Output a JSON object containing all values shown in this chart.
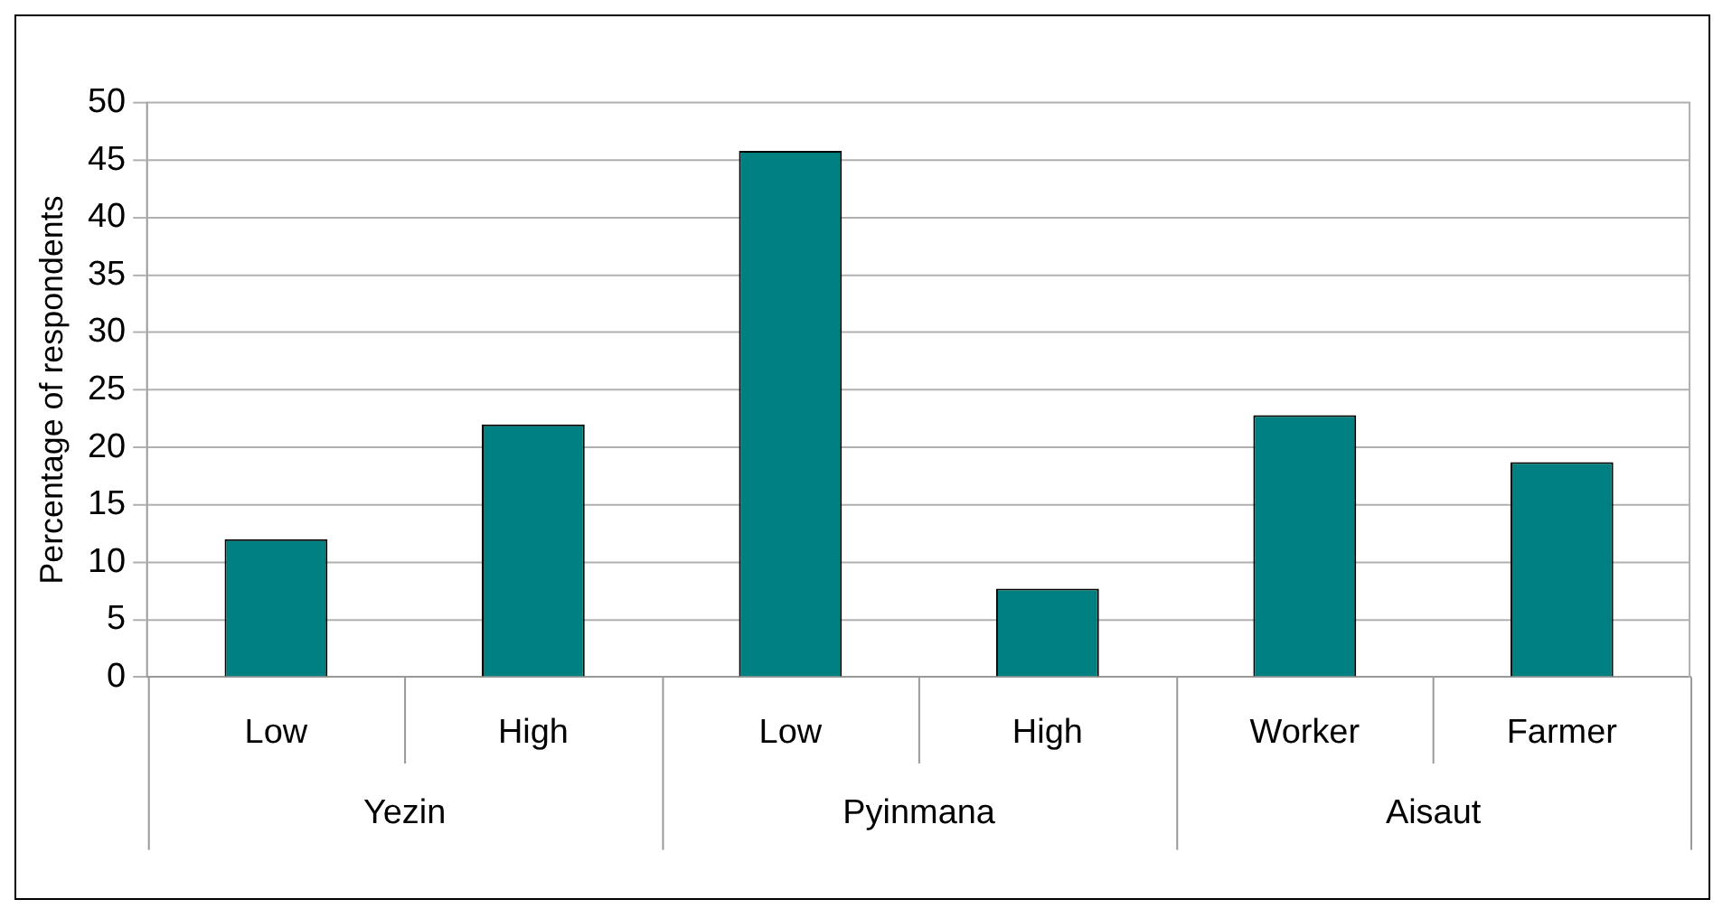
{
  "chart_data": {
    "type": "bar",
    "ylabel": "Percentage of respondents",
    "categories": [
      "Low",
      "High",
      "Low",
      "High",
      "Worker",
      "Farmer"
    ],
    "values": [
      12,
      22,
      45.8,
      7.7,
      22.8,
      18.7
    ],
    "color": "#008080",
    "annotations": [
      "Yezin",
      "Pyinmana",
      "Aisaut"
    ],
    "ylim": [
      0,
      50
    ],
    "yticks": [
      0,
      5,
      10,
      15,
      20,
      25,
      30,
      35,
      40,
      45,
      50
    ],
    "grid": "y",
    "legend": false
  }
}
